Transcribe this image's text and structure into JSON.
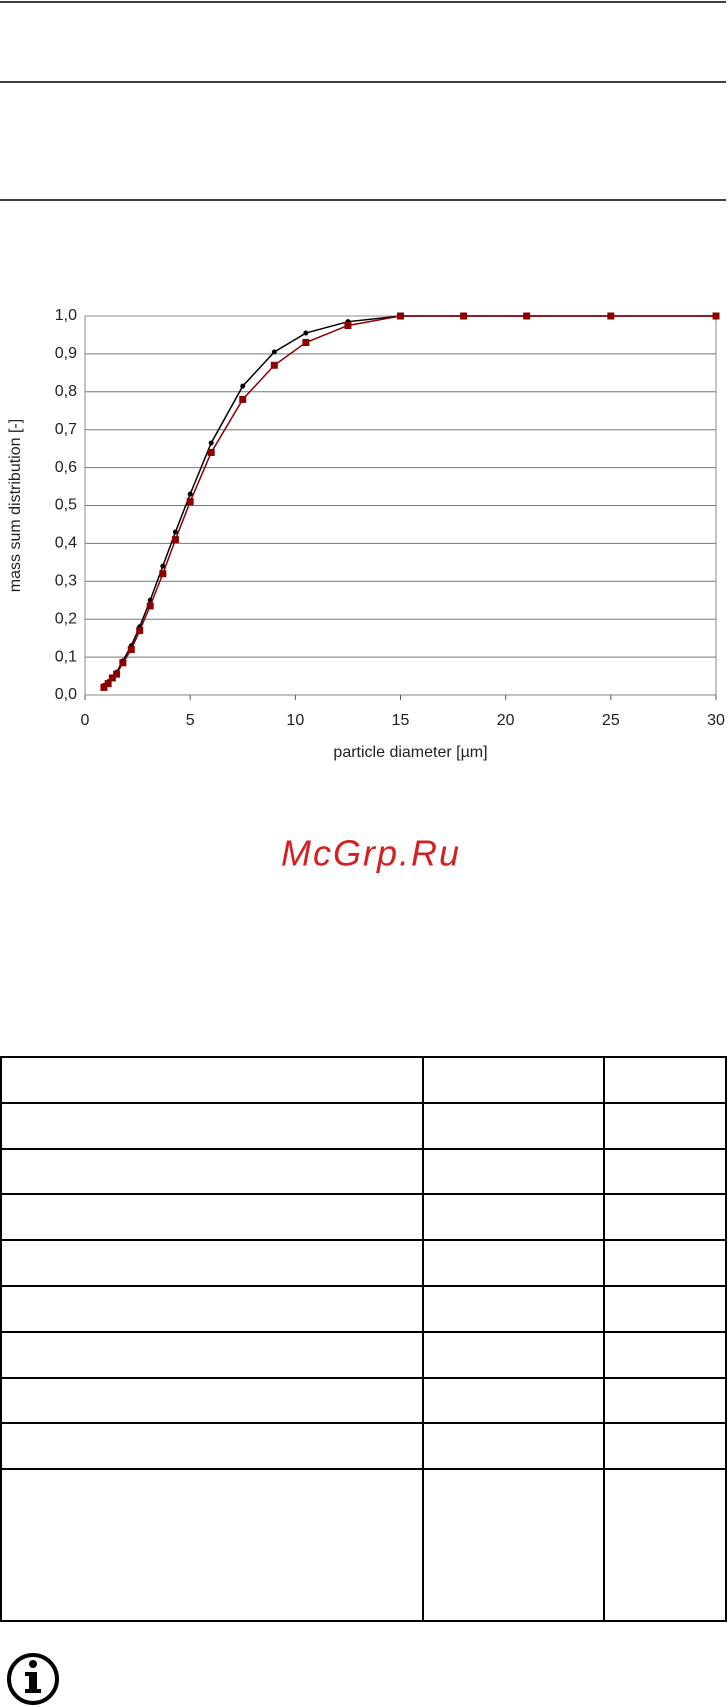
{
  "chart_data": {
    "type": "line",
    "x_label": "particle diameter [µm]",
    "y_label": "mass sum distribution [-]",
    "x": [
      0.9,
      1.1,
      1.3,
      1.5,
      1.8,
      2.2,
      2.6,
      3.1,
      3.7,
      4.3,
      5,
      6,
      7.5,
      9,
      10.5,
      12.5,
      15,
      18,
      21,
      25,
      30
    ],
    "series": [
      {
        "color": "#000000",
        "values": [
          0.025,
          0.035,
          0.045,
          0.06,
          0.09,
          0.13,
          0.18,
          0.25,
          0.34,
          0.43,
          0.53,
          0.665,
          0.815,
          0.905,
          0.955,
          0.985,
          1.0,
          1.0,
          1.0,
          1.0,
          1.0
        ]
      },
      {
        "color": "#8b0000",
        "values": [
          0.02,
          0.03,
          0.045,
          0.055,
          0.085,
          0.12,
          0.17,
          0.235,
          0.32,
          0.41,
          0.51,
          0.64,
          0.78,
          0.87,
          0.93,
          0.975,
          1.0,
          1.0,
          1.0,
          1.0,
          1.0
        ]
      }
    ],
    "xlim": [
      0,
      30
    ],
    "xticks": [
      0,
      5,
      10,
      15,
      20,
      25,
      30
    ],
    "ylim": [
      0,
      1
    ],
    "yticks": [
      {
        "value": 0,
        "label": "0,0"
      },
      {
        "value": 0.1,
        "label": "0,1"
      },
      {
        "value": 0.2,
        "label": "0,2"
      },
      {
        "value": 0.3,
        "label": "0,3"
      },
      {
        "value": 0.4,
        "label": "0,4"
      },
      {
        "value": 0.5,
        "label": "0,5"
      },
      {
        "value": 0.6,
        "label": "0,6"
      },
      {
        "value": 0.7,
        "label": "0,7"
      },
      {
        "value": 0.8,
        "label": "0,8"
      },
      {
        "value": 0.9,
        "label": "0,9"
      },
      {
        "value": 1,
        "label": "1,0"
      }
    ],
    "grid": true
  },
  "watermark": "McGrp.Ru"
}
